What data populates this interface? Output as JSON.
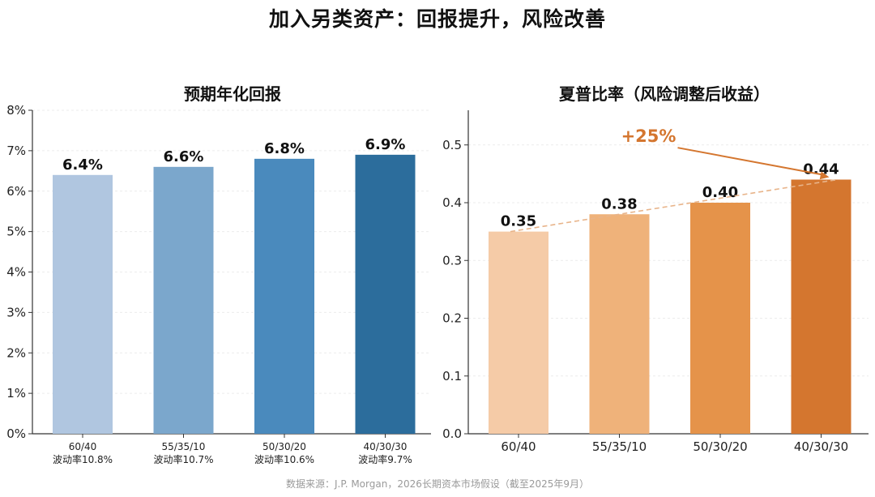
{
  "title": "加入另类资产：回报提升，风险改善",
  "source": "数据来源：J.P. Morgan，2026长期资本市场假设（截至2025年9月）",
  "chart_data": [
    {
      "type": "bar",
      "title": "预期年化回报",
      "categories": [
        "60/40",
        "55/35/10",
        "50/30/20",
        "40/30/30"
      ],
      "category_sublabels": [
        "波动率10.8%",
        "波动率10.7%",
        "波动率10.6%",
        "波动率9.7%"
      ],
      "values": [
        6.4,
        6.6,
        6.8,
        6.9
      ],
      "value_labels": [
        "6.4%",
        "6.6%",
        "6.8%",
        "6.9%"
      ],
      "bar_colors": [
        "#b0c6e0",
        "#7ba7cc",
        "#4a8abd",
        "#2c6d9c"
      ],
      "ylim": [
        0,
        8
      ],
      "yticks": [
        0,
        1,
        2,
        3,
        4,
        5,
        6,
        7,
        8
      ],
      "ytick_labels": [
        "0%",
        "1%",
        "2%",
        "3%",
        "4%",
        "5%",
        "6%",
        "7%",
        "8%"
      ],
      "xlabel": "",
      "ylabel": ""
    },
    {
      "type": "bar",
      "title": "夏普比率（风险调整后收益）",
      "categories": [
        "60/40",
        "55/35/10",
        "50/30/20",
        "40/30/30"
      ],
      "values": [
        0.35,
        0.38,
        0.4,
        0.44
      ],
      "value_labels": [
        "0.35",
        "0.38",
        "0.40",
        "0.44"
      ],
      "bar_colors": [
        "#f5cba7",
        "#efb27a",
        "#e5934a",
        "#d4762f"
      ],
      "ylim": [
        0,
        0.56
      ],
      "yticks": [
        0,
        0.1,
        0.2,
        0.3,
        0.4,
        0.5
      ],
      "ytick_labels": [
        "0.0",
        "0.1",
        "0.2",
        "0.3",
        "0.4",
        "0.5"
      ],
      "trend_line": {
        "from": 0.35,
        "to": 0.44,
        "style": "dashed"
      },
      "annotation": {
        "text": "+25%",
        "color": "#d4762f",
        "points_to": "40/30/30"
      },
      "xlabel": "",
      "ylabel": ""
    }
  ]
}
